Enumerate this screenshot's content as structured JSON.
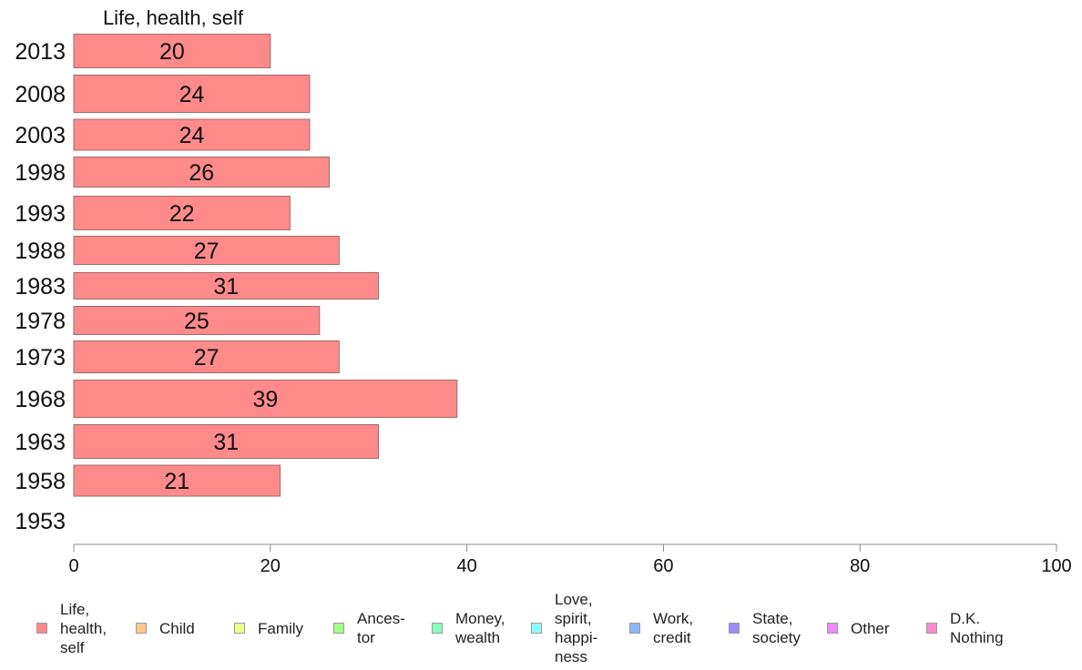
{
  "chart_data": {
    "type": "bar",
    "orientation": "horizontal",
    "title": "Life, health, self",
    "categories": [
      "2013",
      "2008",
      "2003",
      "1998",
      "1993",
      "1988",
      "1983",
      "1978",
      "1973",
      "1968",
      "1963",
      "1958",
      "1953"
    ],
    "series": [
      {
        "name": "Life, health, self",
        "color": "#ff8a8a",
        "values": [
          20,
          24,
          24,
          26,
          22,
          27,
          31,
          25,
          27,
          39,
          31,
          21,
          null
        ]
      }
    ],
    "data_labels": [
      "20",
      "24",
      "24",
      "26",
      "22",
      "27",
      "31",
      "25",
      "27",
      "39",
      "31",
      "21",
      ""
    ],
    "xlim": [
      0,
      100
    ],
    "xticks": [
      0,
      20,
      40,
      60,
      80,
      100
    ],
    "xtick_labels": [
      "0",
      "20",
      "40",
      "60",
      "80",
      "100"
    ],
    "xlabel": "",
    "ylabel": "",
    "grid": false,
    "legend_position": "bottom"
  },
  "legend": [
    {
      "label": "Life,\nhealth,\nself",
      "color": "#ff8a8a"
    },
    {
      "label": "Child",
      "color": "#ffc98a"
    },
    {
      "label": "Family",
      "color": "#eeff8a"
    },
    {
      "label": "Ances-\ntor",
      "color": "#a4ff8a"
    },
    {
      "label": "Money,\nwealth",
      "color": "#8affb9"
    },
    {
      "label": "Love,\nspirit,\nhappi-\nness",
      "color": "#8affff"
    },
    {
      "label": "Work,\ncredit",
      "color": "#8ab9ff"
    },
    {
      "label": "State,\nsociety",
      "color": "#a08aff"
    },
    {
      "label": "Other",
      "color": "#ee8aff"
    },
    {
      "label": "D.K.\nNothing",
      "color": "#ff8ad0"
    }
  ]
}
